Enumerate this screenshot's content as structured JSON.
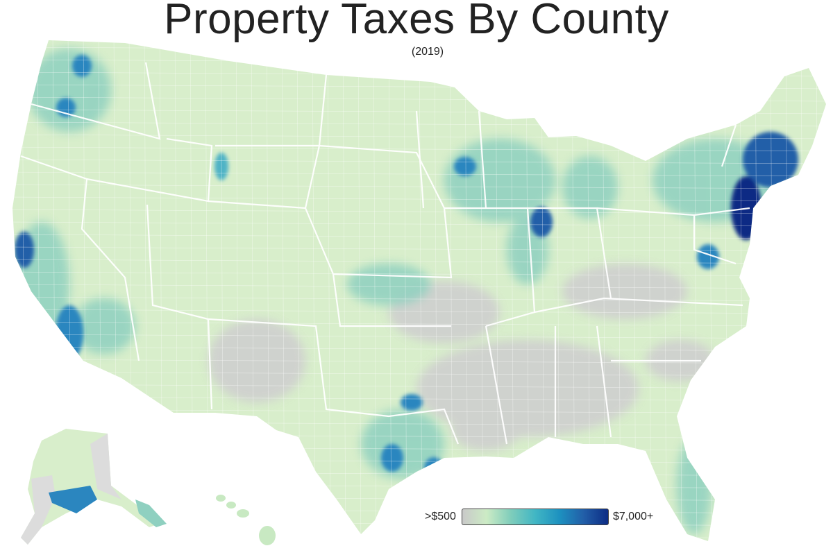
{
  "title": "Property Taxes By County",
  "subtitle": "(2019)",
  "legend": {
    "min_label": ">$500",
    "max_label": "$7,000+",
    "colors": [
      "#c9c9c9",
      "#ccebc5",
      "#7fcdbb",
      "#41b6c4",
      "#1d91c0",
      "#225ea8",
      "#0c2c84"
    ]
  },
  "palette": {
    "gray": "#cfcfcf",
    "lowest": "#d8eecb",
    "low": "#c8e9c2",
    "mid": "#8fd0c0",
    "midhigh": "#4fb3c6",
    "high": "#2b86bf",
    "veryhigh": "#225ea8",
    "max": "#0c2c84",
    "borders": "#ffffff",
    "alaska_gray": "#dcdcdc"
  }
}
